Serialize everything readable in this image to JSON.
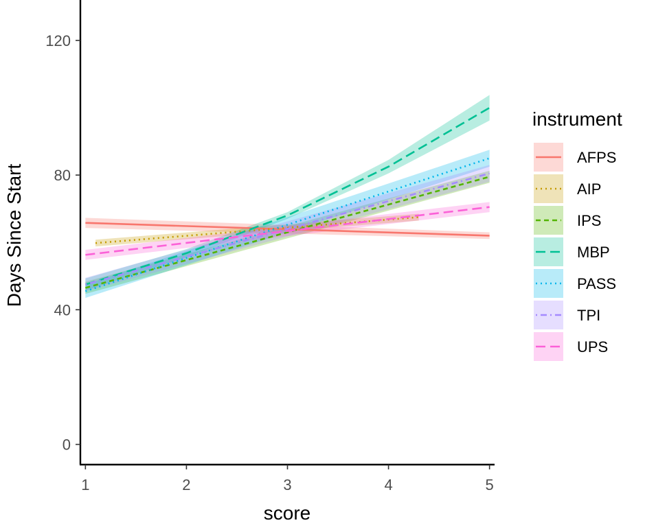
{
  "chart_data": {
    "type": "line",
    "xlabel": "score",
    "ylabel": "Days Since Start",
    "xlim": [
      0.95,
      5.05
    ],
    "ylim": [
      -6,
      132
    ],
    "x_ticks": [
      1,
      2,
      3,
      4,
      5
    ],
    "y_ticks": [
      0,
      40,
      80,
      120
    ],
    "grid": false,
    "confidence_bands": true,
    "legend": {
      "title": "instrument",
      "placement": "right"
    },
    "series": [
      {
        "name": "AFPS",
        "color": "#F8766D",
        "dash": "solid",
        "x": [
          1,
          5
        ],
        "y": [
          65.8,
          62.0
        ],
        "band": [
          1.5,
          1.0
        ]
      },
      {
        "name": "AIP",
        "color": "#C49A00",
        "dash": "dotted",
        "x": [
          1.1,
          4.3
        ],
        "y": [
          59.8,
          67.5
        ],
        "band": [
          1.0,
          1.0
        ]
      },
      {
        "name": "IPS",
        "color": "#53B400",
        "dash": "dashed",
        "x": [
          1,
          5
        ],
        "y": [
          46.5,
          79.5
        ],
        "band": [
          1.8,
          1.8
        ]
      },
      {
        "name": "MBP",
        "color": "#00C094",
        "dash": "longdash",
        "x": [
          1,
          2,
          3,
          4,
          5
        ],
        "y": [
          47.5,
          56.8,
          68.0,
          82.5,
          100.0
        ],
        "band": [
          1.8,
          1.2,
          1.0,
          2.0,
          3.8
        ]
      },
      {
        "name": "PASS",
        "color": "#00B6EB",
        "dash": "dotted",
        "x": [
          1,
          5
        ],
        "y": [
          45.5,
          85.0
        ],
        "band": [
          2.0,
          2.5
        ]
      },
      {
        "name": "TPI",
        "color": "#A58AFF",
        "dash": "dotdash",
        "x": [
          1,
          5
        ],
        "y": [
          47.5,
          80.5
        ],
        "band": [
          2.0,
          2.5
        ]
      },
      {
        "name": "UPS",
        "color": "#FB61D7",
        "dash": "longdash",
        "x": [
          1,
          5
        ],
        "y": [
          56.3,
          70.5
        ],
        "band": [
          1.5,
          1.5
        ]
      }
    ]
  }
}
